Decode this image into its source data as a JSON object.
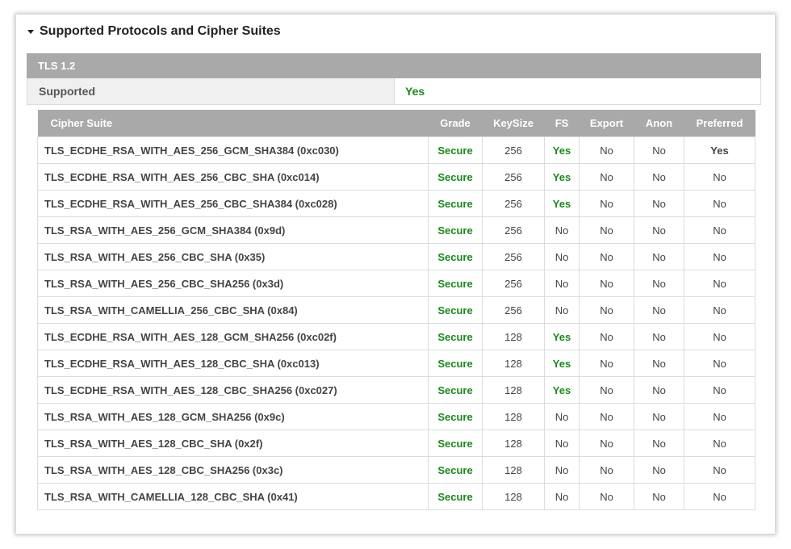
{
  "section": {
    "title": "Supported Protocols and Cipher Suites"
  },
  "protocol": {
    "name": "TLS 1.2",
    "supported_label": "Supported",
    "supported_value": "Yes"
  },
  "columns": [
    "Cipher Suite",
    "Grade",
    "KeySize",
    "FS",
    "Export",
    "Anon",
    "Preferred"
  ],
  "rows": [
    {
      "suite": "TLS_ECDHE_RSA_WITH_AES_256_GCM_SHA384 (0xc030)",
      "grade": "Secure",
      "keysize": "256",
      "fs": "Yes",
      "export": "No",
      "anon": "No",
      "preferred": "Yes"
    },
    {
      "suite": "TLS_ECDHE_RSA_WITH_AES_256_CBC_SHA (0xc014)",
      "grade": "Secure",
      "keysize": "256",
      "fs": "Yes",
      "export": "No",
      "anon": "No",
      "preferred": "No"
    },
    {
      "suite": "TLS_ECDHE_RSA_WITH_AES_256_CBC_SHA384 (0xc028)",
      "grade": "Secure",
      "keysize": "256",
      "fs": "Yes",
      "export": "No",
      "anon": "No",
      "preferred": "No"
    },
    {
      "suite": "TLS_RSA_WITH_AES_256_GCM_SHA384 (0x9d)",
      "grade": "Secure",
      "keysize": "256",
      "fs": "No",
      "export": "No",
      "anon": "No",
      "preferred": "No"
    },
    {
      "suite": "TLS_RSA_WITH_AES_256_CBC_SHA (0x35)",
      "grade": "Secure",
      "keysize": "256",
      "fs": "No",
      "export": "No",
      "anon": "No",
      "preferred": "No"
    },
    {
      "suite": "TLS_RSA_WITH_AES_256_CBC_SHA256 (0x3d)",
      "grade": "Secure",
      "keysize": "256",
      "fs": "No",
      "export": "No",
      "anon": "No",
      "preferred": "No"
    },
    {
      "suite": "TLS_RSA_WITH_CAMELLIA_256_CBC_SHA (0x84)",
      "grade": "Secure",
      "keysize": "256",
      "fs": "No",
      "export": "No",
      "anon": "No",
      "preferred": "No"
    },
    {
      "suite": "TLS_ECDHE_RSA_WITH_AES_128_GCM_SHA256 (0xc02f)",
      "grade": "Secure",
      "keysize": "128",
      "fs": "Yes",
      "export": "No",
      "anon": "No",
      "preferred": "No"
    },
    {
      "suite": "TLS_ECDHE_RSA_WITH_AES_128_CBC_SHA (0xc013)",
      "grade": "Secure",
      "keysize": "128",
      "fs": "Yes",
      "export": "No",
      "anon": "No",
      "preferred": "No"
    },
    {
      "suite": "TLS_ECDHE_RSA_WITH_AES_128_CBC_SHA256 (0xc027)",
      "grade": "Secure",
      "keysize": "128",
      "fs": "Yes",
      "export": "No",
      "anon": "No",
      "preferred": "No"
    },
    {
      "suite": "TLS_RSA_WITH_AES_128_GCM_SHA256 (0x9c)",
      "grade": "Secure",
      "keysize": "128",
      "fs": "No",
      "export": "No",
      "anon": "No",
      "preferred": "No"
    },
    {
      "suite": "TLS_RSA_WITH_AES_128_CBC_SHA (0x2f)",
      "grade": "Secure",
      "keysize": "128",
      "fs": "No",
      "export": "No",
      "anon": "No",
      "preferred": "No"
    },
    {
      "suite": "TLS_RSA_WITH_AES_128_CBC_SHA256 (0x3c)",
      "grade": "Secure",
      "keysize": "128",
      "fs": "No",
      "export": "No",
      "anon": "No",
      "preferred": "No"
    },
    {
      "suite": "TLS_RSA_WITH_CAMELLIA_128_CBC_SHA (0x41)",
      "grade": "Secure",
      "keysize": "128",
      "fs": "No",
      "export": "No",
      "anon": "No",
      "preferred": "No"
    }
  ],
  "icons": {
    "collapse": "caret-down-icon"
  },
  "colors": {
    "header_gray": "#a9a9a9",
    "secure_green": "#1a8a1a"
  }
}
